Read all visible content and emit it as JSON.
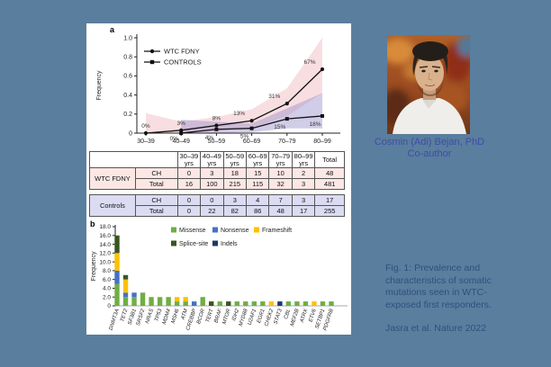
{
  "background_color": "#5a7e9d",
  "figure": {
    "panel_a_label": "a",
    "panel_b_label": "b"
  },
  "chart_data": [
    {
      "type": "line",
      "panel": "a",
      "title": "",
      "xlabel": "",
      "ylabel": "Frequency",
      "ylim": [
        0,
        1.0
      ],
      "yticks": [
        "0",
        "0.2",
        "0.4",
        "0.6",
        "0.8",
        "1.0"
      ],
      "categories": [
        "30–39",
        "40–49",
        "50–59",
        "60–69",
        "70–79",
        "80–99"
      ],
      "grid": false,
      "legend_position": "upper-left",
      "series": [
        {
          "name": "WTC FDNY",
          "marker": "circle",
          "line_color": "#111111",
          "values": [
            0.0,
            0.03,
            0.08,
            0.13,
            0.31,
            0.67
          ],
          "point_labels": [
            "0%",
            "3%",
            "8%",
            "13%",
            "31%",
            "67%"
          ],
          "band_upper": [
            0.21,
            0.12,
            0.17,
            0.25,
            0.47,
            1.0
          ],
          "band_lower": [
            0.0,
            0.0,
            0.02,
            0.05,
            0.18,
            0.42
          ],
          "band_color": "#f0b6bc"
        },
        {
          "name": "CONTROLS",
          "marker": "square",
          "line_color": "#111111",
          "values": [
            null,
            0.0,
            0.04,
            0.05,
            0.15,
            0.18
          ],
          "point_labels": [
            "",
            "0%",
            "4%",
            "5%",
            "15%",
            "18%"
          ],
          "band_upper": [
            null,
            0.14,
            0.12,
            0.1,
            0.26,
            0.42
          ],
          "band_lower": [
            null,
            0.0,
            0.0,
            0.01,
            0.05,
            0.05
          ],
          "band_color": "#988fcc"
        }
      ]
    },
    {
      "type": "stacked_bar",
      "panel": "b",
      "title": "",
      "xlabel": "",
      "ylabel": "Frequency",
      "ylim": [
        0,
        18
      ],
      "yticks": [
        "0",
        "2.0",
        "4.0",
        "6.0",
        "8.0",
        "10.0",
        "12.0",
        "14.0",
        "16.0",
        "18.0"
      ],
      "grid": false,
      "legend_position": "upper-center",
      "categories": [
        "DNMT3A",
        "TET2",
        "SF3B1",
        "SRSF2",
        "NRAS",
        "TP53",
        "MDM4",
        "MSH6",
        "ATM",
        "CREBBP",
        "BCOR",
        "TERT",
        "BRAF",
        "MTOR",
        "IDH2",
        "MYD88",
        "U2AF1",
        "EGR1",
        "CHEK2",
        "STAT3",
        "CBL",
        "MEF2B",
        "ATRX",
        "ETV6",
        "SETBP1",
        "PDGFRB"
      ],
      "series": [
        {
          "name": "Missense",
          "color": "#6fae44",
          "values": [
            5,
            2,
            2,
            3,
            2,
            2,
            2,
            1,
            1,
            0,
            2,
            0,
            1,
            0,
            1,
            1,
            1,
            1,
            0,
            0,
            1,
            1,
            1,
            0,
            1,
            1
          ]
        },
        {
          "name": "Nonsense",
          "color": "#4472c4",
          "values": [
            3,
            1,
            1,
            0,
            0,
            0,
            0,
            0,
            0,
            1,
            0,
            0,
            0,
            0,
            0,
            0,
            0,
            0,
            0,
            0,
            0,
            0,
            0,
            0,
            0,
            0
          ]
        },
        {
          "name": "Frameshift",
          "color": "#ffc000",
          "values": [
            4,
            3,
            0,
            0,
            0,
            0,
            0,
            1,
            1,
            0,
            0,
            0,
            0,
            0,
            0,
            0,
            0,
            0,
            1,
            0,
            0,
            0,
            0,
            1,
            0,
            0
          ]
        },
        {
          "name": "Splice-site",
          "color": "#38571f",
          "values": [
            4,
            1,
            0,
            0,
            0,
            0,
            0,
            0,
            0,
            0,
            0,
            1,
            0,
            1,
            0,
            0,
            0,
            0,
            0,
            0,
            0,
            0,
            0,
            0,
            0,
            0
          ]
        },
        {
          "name": "Indels",
          "color": "#1f3864",
          "values": [
            0,
            0,
            0,
            0,
            0,
            0,
            0,
            0,
            0,
            0,
            0,
            0,
            0,
            0,
            0,
            0,
            0,
            0,
            0,
            1,
            0,
            0,
            0,
            0,
            0,
            0
          ]
        }
      ]
    }
  ],
  "table": {
    "age_columns": [
      "30–39 yrs",
      "40–49 yrs",
      "50–59 yrs",
      "60–69 yrs",
      "70–79 yrs",
      "80–99 yrs"
    ],
    "total_column": "Total",
    "groups": [
      {
        "name": "WTC FDNY",
        "row_color": "#fbe7e4",
        "rows": [
          {
            "label": "CH",
            "values": [
              "0",
              "3",
              "18",
              "15",
              "10",
              "2",
              "48"
            ]
          },
          {
            "label": "Total",
            "values": [
              "16",
              "100",
              "215",
              "115",
              "32",
              "3",
              "481"
            ]
          }
        ]
      },
      {
        "name": "Controls",
        "row_color": "#dbdcf2",
        "rows": [
          {
            "label": "CH",
            "values": [
              "0",
              "0",
              "3",
              "4",
              "7",
              "3",
              "17"
            ]
          },
          {
            "label": "Total",
            "values": [
              "0",
              "22",
              "82",
              "86",
              "48",
              "17",
              "255"
            ]
          }
        ]
      }
    ]
  },
  "author": {
    "name": "Cosmin (Adi) Bejan, PhD",
    "role": "Co-author",
    "photo_description": "man with dark curly hair and white shirt against autumn foliage"
  },
  "caption": {
    "lines": [
      "Fig. 1: Prevalence and",
      "characteristics of somatic",
      "mutations seen in WTC-",
      "exposed first responders."
    ],
    "citation": "Jasra et al. Nature 2022"
  }
}
